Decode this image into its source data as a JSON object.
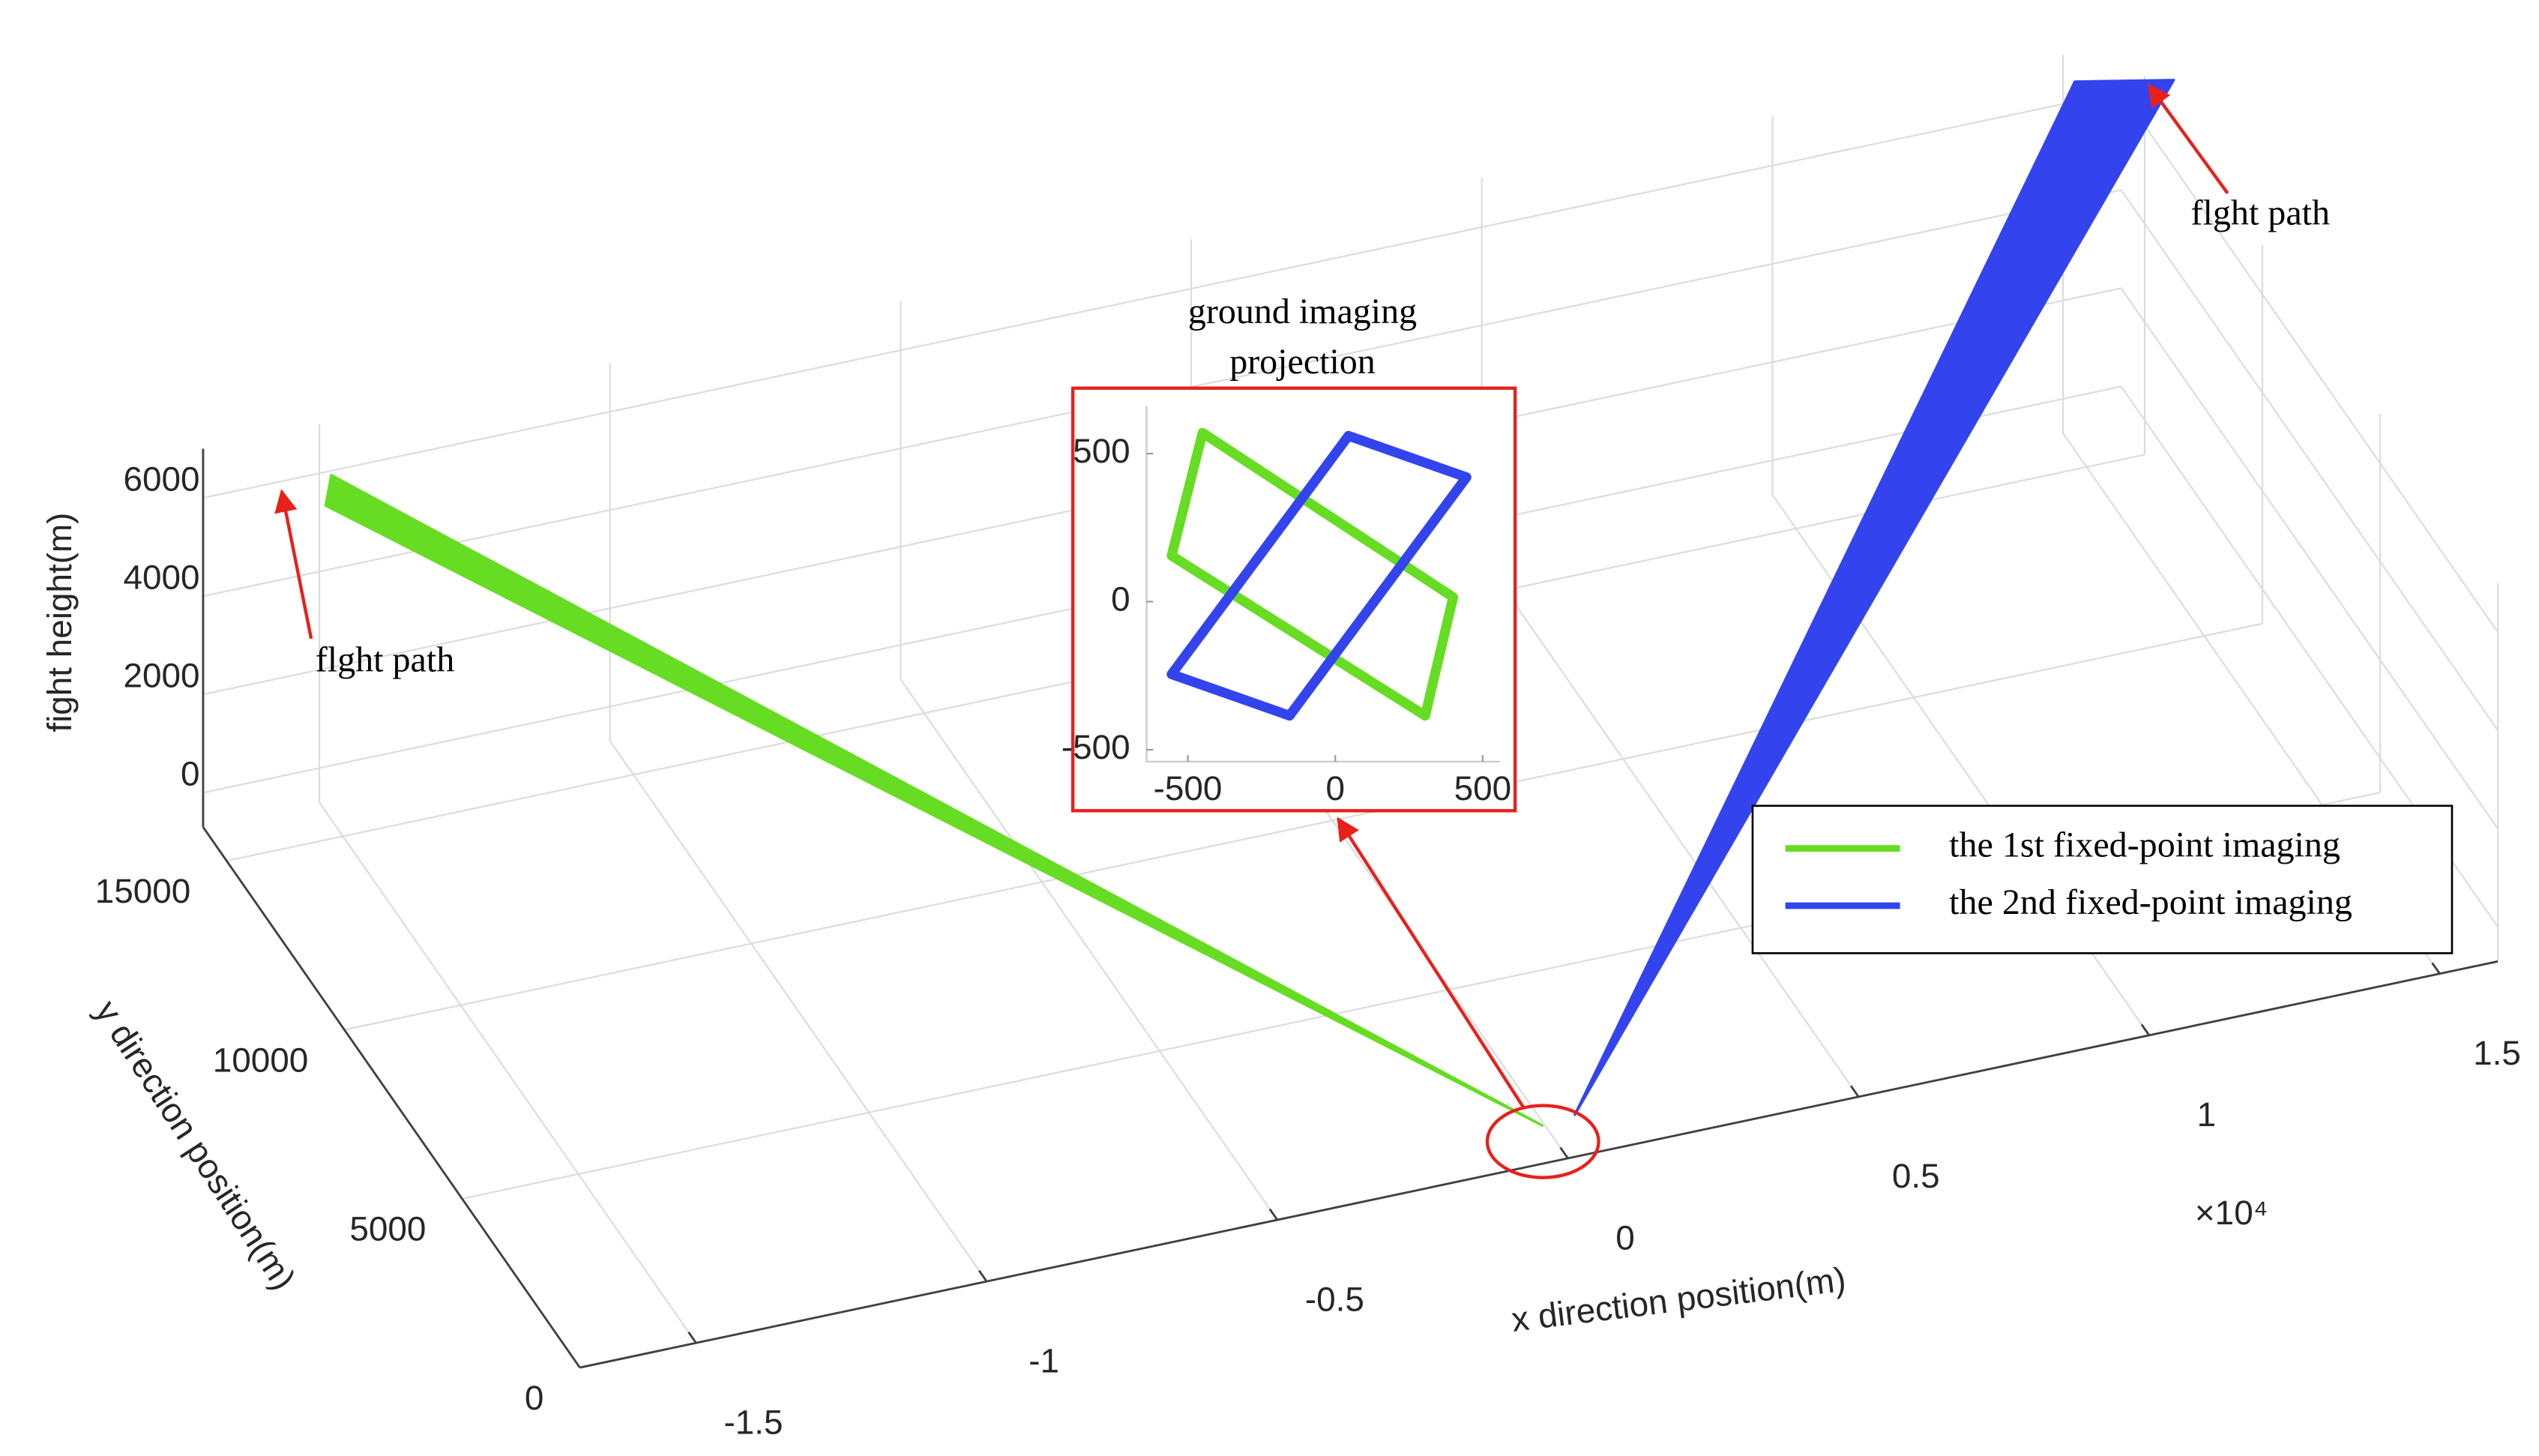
{
  "chart_data": [
    {
      "type": "line3d",
      "xlabel": "x direction position(m)",
      "ylabel": "y direction position(m)",
      "zlabel": "fight height(m)",
      "x_exponent_label": "×10⁴",
      "xlim": [
        -17000,
        16000
      ],
      "ylim": [
        0,
        16000
      ],
      "zlim": [
        -700,
        7000
      ],
      "xticks": [
        {
          "value": -15000,
          "label": "-1.5"
        },
        {
          "value": -10000,
          "label": "-1"
        },
        {
          "value": -5000,
          "label": "-0.5"
        },
        0,
        {
          "value": 5000,
          "label": "0.5"
        },
        {
          "value": 10000,
          "label": "1"
        },
        {
          "value": 15000,
          "label": "1.5"
        }
      ],
      "yticks": [
        0,
        5000,
        10000,
        15000
      ],
      "zticks": [
        0,
        2000,
        4000,
        6000
      ],
      "grid": true,
      "legend": "east",
      "annotations": [
        "flght path",
        "flght path"
      ],
      "series": [
        {
          "name": "the 1st fixed-point imaging",
          "color": "#66dd22",
          "x": [
            -15500,
            -15200,
            -400
          ],
          "y": [
            14500,
            15000,
            100
          ],
          "z": [
            6500,
            6700,
            0
          ]
        },
        {
          "name": "the 2nd fixed-point imaging",
          "color": "#3344ee",
          "x": [
            15000,
            16500,
            200
          ],
          "y": [
            15500,
            15000,
            200
          ],
          "z": [
            6800,
            6800,
            0
          ]
        }
      ]
    },
    {
      "type": "line",
      "title": "ground imaging projection",
      "xlim": [
        -640,
        560
      ],
      "ylim": [
        -540,
        660
      ],
      "xticks": [
        -500,
        0,
        500
      ],
      "yticks": [
        -500,
        0,
        500
      ],
      "series": [
        {
          "color": "#66dd22",
          "x": [
            -450,
            400,
            305,
            -555
          ],
          "y": [
            570,
            15,
            -385,
            155
          ]
        },
        {
          "color": "#3344ee",
          "x": [
            45,
            445,
            -155,
            -555
          ],
          "y": [
            560,
            420,
            -385,
            -245
          ]
        }
      ]
    }
  ]
}
